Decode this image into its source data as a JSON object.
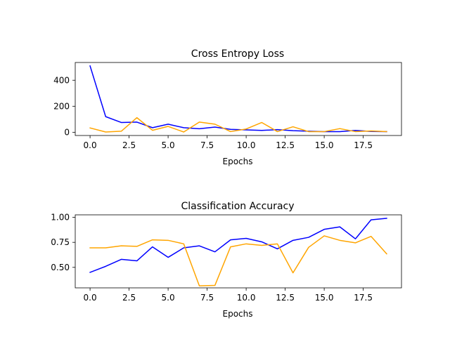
{
  "figure": {
    "background": "#ffffff"
  },
  "chart_data": [
    {
      "type": "line",
      "title": "Cross Entropy Loss",
      "xlabel": "Epochs",
      "ylabel": "",
      "xlim": [
        -0.95,
        19.95
      ],
      "ylim": [
        -25.0,
        536.3
      ],
      "x": [
        0,
        1,
        2,
        3,
        4,
        5,
        6,
        7,
        8,
        9,
        10,
        11,
        12,
        13,
        14,
        15,
        16,
        17,
        18,
        19
      ],
      "xticks": [
        0.0,
        2.5,
        5.0,
        7.5,
        10.0,
        12.5,
        15.0,
        17.5
      ],
      "xtick_labels": [
        "0.0",
        "2.5",
        "5.0",
        "7.5",
        "10.0",
        "12.5",
        "15.0",
        "17.5"
      ],
      "yticks": [
        0,
        200,
        400
      ],
      "ytick_labels": [
        "0",
        "200",
        "400"
      ],
      "grid": false,
      "legend": null,
      "series": [
        {
          "color": "#0000ff",
          "values": [
            510,
            120,
            75,
            78,
            35,
            62,
            35,
            27,
            40,
            22,
            18,
            14,
            20,
            12,
            8,
            5,
            5,
            14,
            6,
            5
          ]
        },
        {
          "color": "#ffa500",
          "values": [
            33,
            2,
            8,
            112,
            15,
            45,
            2,
            78,
            62,
            5,
            25,
            75,
            5,
            42,
            5,
            5,
            28,
            5,
            10,
            5
          ]
        }
      ]
    },
    {
      "type": "line",
      "title": "Classification Accuracy",
      "xlabel": "Epochs",
      "ylabel": "",
      "xlim": [
        -0.95,
        19.95
      ],
      "ylim": [
        0.295,
        1.025
      ],
      "x": [
        0,
        1,
        2,
        3,
        4,
        5,
        6,
        7,
        8,
        9,
        10,
        11,
        12,
        13,
        14,
        15,
        16,
        17,
        18,
        19
      ],
      "xticks": [
        0.0,
        2.5,
        5.0,
        7.5,
        10.0,
        12.5,
        15.0,
        17.5
      ],
      "xtick_labels": [
        "0.0",
        "2.5",
        "5.0",
        "7.5",
        "10.0",
        "12.5",
        "15.0",
        "17.5"
      ],
      "yticks": [
        0.5,
        0.75,
        1.0
      ],
      "ytick_labels": [
        "0.50",
        "0.75",
        "1.00"
      ],
      "grid": false,
      "legend": null,
      "series": [
        {
          "color": "#0000ff",
          "values": [
            0.45,
            0.51,
            0.58,
            0.565,
            0.705,
            0.6,
            0.695,
            0.715,
            0.655,
            0.775,
            0.79,
            0.755,
            0.685,
            0.77,
            0.8,
            0.88,
            0.905,
            0.785,
            0.975,
            0.99
          ]
        },
        {
          "color": "#ffa500",
          "values": [
            0.695,
            0.695,
            0.715,
            0.71,
            0.775,
            0.77,
            0.735,
            0.315,
            0.32,
            0.705,
            0.735,
            0.72,
            0.735,
            0.445,
            0.7,
            0.815,
            0.77,
            0.745,
            0.81,
            0.635
          ]
        }
      ]
    }
  ]
}
